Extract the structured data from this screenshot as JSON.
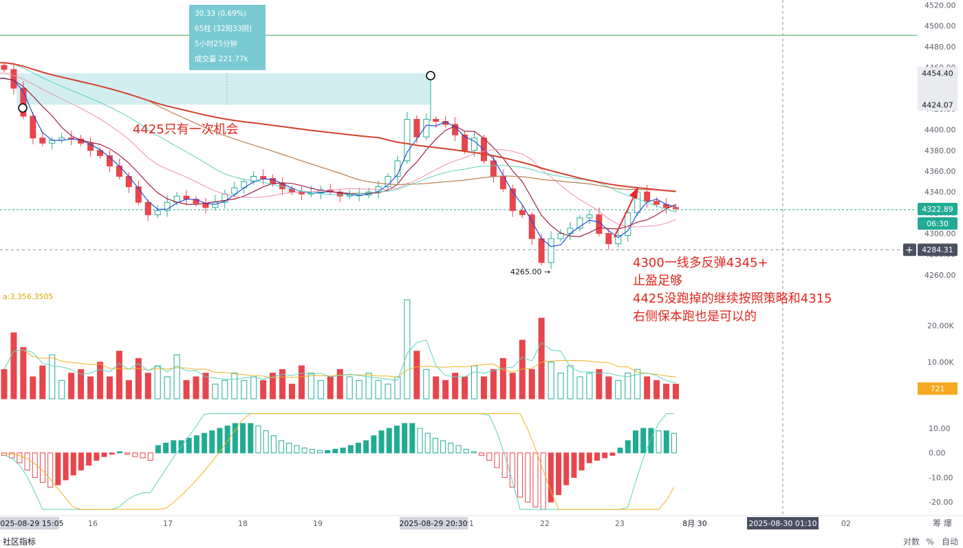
{
  "chart_data": [
    {
      "type": "candlestick",
      "price_axis": {
        "ylim": [
          4248,
          4525
        ],
        "ticks": [
          "4520.00",
          "4500.00",
          "4480.00",
          "4460.00",
          "4440.00",
          "4420.00",
          "4400.00",
          "4380.00",
          "4360.00",
          "4340.00",
          "4320.00",
          "4300.00",
          "4280.00",
          "4260.00"
        ]
      },
      "time_axis": {
        "labels": [
          "16",
          "17",
          "18",
          "19",
          "21",
          "22",
          "23",
          "8月 30",
          "02"
        ]
      },
      "price_badges": {
        "upper": "4454.40",
        "lower": "4424.07",
        "current": "4322.89",
        "countdown": "06:30",
        "crosshair": "4284.31"
      },
      "crosshair_time": "2025-08-30 01:10",
      "range_selection": {
        "start": "2025-08-29 15:05",
        "end": "2025-08-29 20:30"
      },
      "measure_tooltip": [
        "30.33 (0.69%)",
        "65柱 (32阳33阴)",
        "5小时25分钟",
        "成交量 221.77k"
      ],
      "low_marker": "4265.00",
      "annotations": {
        "opportunity": "4425只有一次机会",
        "strategy": [
          "4300一线多反弹4345+",
          "止盈足够",
          "4425没跑掉的继续按照策略和4315",
          "右侧保本跑也是可以的"
        ]
      },
      "moving_averages": [
        "#1e50d2",
        "#9c1f3f",
        "#f08cab",
        "#5ad2be",
        "#b97e4a",
        "#d2412b"
      ],
      "close_path": [
        4458,
        4440,
        4413,
        4392,
        4387,
        4390,
        4392,
        4391,
        4387,
        4380,
        4375,
        4365,
        4355,
        4345,
        4330,
        4318,
        4322,
        4330,
        4336,
        4333,
        4329,
        4325,
        4330,
        4338,
        4344,
        4350,
        4355,
        4353,
        4348,
        4343,
        4340,
        4338,
        4339,
        4342,
        4340,
        4336,
        4337,
        4337,
        4340,
        4345,
        4355,
        4370,
        4410,
        4393,
        4410,
        4408,
        4405,
        4395,
        4380,
        4392,
        4370,
        4355,
        4343,
        4322,
        4318,
        4295,
        4272,
        4295,
        4300,
        4305,
        4315,
        4318,
        4300,
        4290,
        4298,
        4320,
        4340,
        4331,
        4328,
        4325,
        4324
      ],
      "up_color": "#22ab94",
      "down_color": "#e8454d"
    },
    {
      "type": "bar",
      "name": "volume",
      "indicator_label": "a:3,356.3505",
      "ylim": [
        0,
        27000
      ],
      "ticks": [
        "20.00K",
        "10.00K"
      ],
      "last_value": "721",
      "values": [
        8,
        18,
        14,
        6,
        9,
        12,
        5,
        7,
        8,
        6,
        10,
        6,
        13,
        5,
        11,
        7,
        9,
        6,
        12,
        5,
        6,
        7,
        4,
        5,
        7,
        5,
        6,
        5,
        7,
        8,
        4,
        9,
        7,
        5,
        6,
        8,
        6,
        5,
        7,
        5,
        4,
        6,
        27,
        13,
        8,
        6,
        5,
        7,
        6,
        9,
        6,
        8,
        11,
        7,
        16,
        8,
        22,
        10,
        7,
        9,
        6,
        7,
        8,
        6,
        5,
        7,
        8,
        6,
        5,
        4,
        4
      ]
    },
    {
      "type": "bar",
      "name": "macd",
      "ylim": [
        -25,
        17
      ],
      "ticks": [
        "10.00",
        "0.00",
        "-10.00",
        "-20.00"
      ],
      "values": [
        -1,
        -2,
        -4,
        -7,
        -10,
        -12,
        -14,
        -13,
        -11,
        -9,
        -7,
        -5,
        -3,
        -1.5,
        -0.5,
        0.5,
        -0.5,
        -1.5,
        -2,
        -3,
        3,
        4,
        5,
        5,
        6,
        7,
        8,
        9,
        10,
        11,
        12,
        12,
        12,
        11,
        9,
        7,
        5,
        4,
        3,
        2,
        1.5,
        1,
        1,
        1.5,
        2,
        3,
        4,
        5,
        7,
        9,
        10,
        11,
        12,
        12,
        10,
        8,
        6,
        5,
        4,
        3,
        1.5,
        0.5,
        -1,
        -3,
        -6,
        -10,
        -14,
        -18,
        -20,
        -22,
        -23,
        -20,
        -17,
        -13,
        -10,
        -7,
        -4,
        -3,
        -2,
        -1,
        2,
        5,
        9,
        10,
        10,
        9,
        9,
        8
      ]
    }
  ],
  "ui": {
    "bottom_left_label": "社区指标",
    "scale_buttons": [
      "对数",
      "%",
      "自动"
    ],
    "corner_label": "筹 爆",
    "plus_icon": "+"
  }
}
